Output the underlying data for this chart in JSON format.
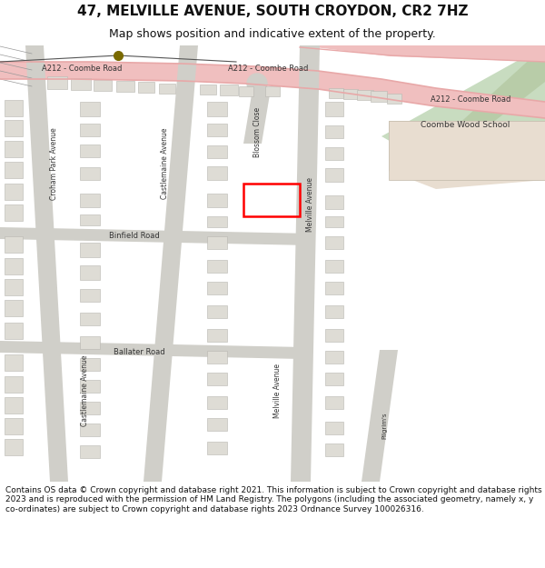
{
  "title_line1": "47, MELVILLE AVENUE, SOUTH CROYDON, CR2 7HZ",
  "title_line2": "Map shows position and indicative extent of the property.",
  "footer_text": "Contains OS data © Crown copyright and database right 2021. This information is subject to Crown copyright and database rights 2023 and is reproduced with the permission of HM Land Registry. The polygons (including the associated geometry, namely x, y co-ordinates) are subject to Crown copyright and database rights 2023 Ordnance Survey 100026316.",
  "bg_color": "#ffffff",
  "map_bg": "#f5f4f0",
  "road_pink": "#f0bfbf",
  "road_pink_dark": "#e8a8a8",
  "road_gray": "#d0cfc9",
  "building_color": "#dedcd5",
  "building_edge": "#b8b6b0",
  "green_area": "#c8dcc0",
  "green_area_dark": "#b8cca8",
  "school_tan": "#e8ddd0",
  "school_edge": "#c0b8a8",
  "dot_color": "#7a6a00",
  "label_color": "#333333",
  "red_rect_color": "red"
}
